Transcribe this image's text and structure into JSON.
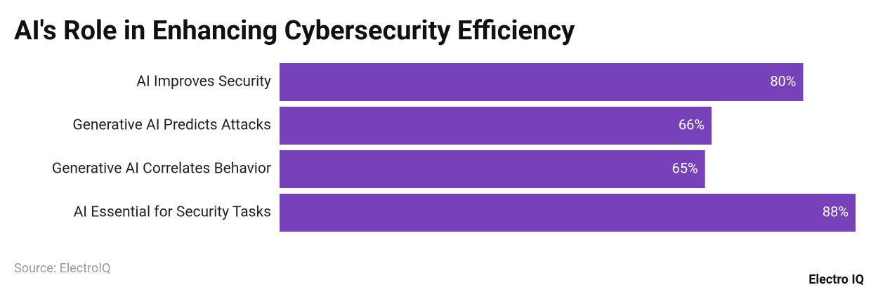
{
  "chart_data": {
    "type": "hbar",
    "title": "AI's Role in Enhancing Cybersecurity Efficiency",
    "categories": [
      "AI Improves Security",
      "Generative AI Predicts Attacks",
      "Generative AI Correlates Behavior",
      "AI Essential for Security Tasks"
    ],
    "values": [
      80,
      66,
      65,
      88
    ],
    "value_labels": [
      "80%",
      "66%",
      "65%",
      "88%"
    ],
    "color": "#7641b9",
    "source": "Source: ElectroIQ",
    "brand": "Electro IQ"
  }
}
